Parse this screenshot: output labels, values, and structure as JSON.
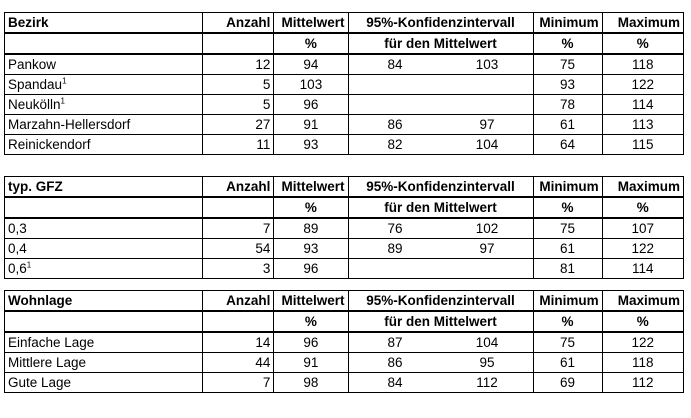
{
  "headers": {
    "count": "Anzahl",
    "mean_1": "Mittelwert",
    "mean_2": "%",
    "ci_1": "95%-Konfidenzintervall",
    "ci_2": "für den Mittelwert",
    "min_1": "Minimum",
    "min_2": "%",
    "max_1": "Maximum",
    "max_2": "%"
  },
  "tables": [
    {
      "title": "Bezirk",
      "rows": [
        {
          "label": "Pankow",
          "sup": "",
          "count": "12",
          "mean": "94",
          "ci_low": "84",
          "ci_high": "103",
          "min": "75",
          "max": "118"
        },
        {
          "label": "Spandau",
          "sup": "1",
          "count": "5",
          "mean": "103",
          "ci_low": "",
          "ci_high": "",
          "min": "93",
          "max": "122"
        },
        {
          "label": "Neukölln",
          "sup": "1",
          "count": "5",
          "mean": "96",
          "ci_low": "",
          "ci_high": "",
          "min": "78",
          "max": "114"
        },
        {
          "label": "Marzahn-Hellersdorf",
          "sup": "",
          "count": "27",
          "mean": "91",
          "ci_low": "86",
          "ci_high": "97",
          "min": "61",
          "max": "113"
        },
        {
          "label": "Reinickendorf",
          "sup": "",
          "count": "11",
          "mean": "93",
          "ci_low": "82",
          "ci_high": "104",
          "min": "64",
          "max": "115"
        }
      ]
    },
    {
      "title": "typ. GFZ",
      "rows": [
        {
          "label": "0,3",
          "sup": "",
          "count": "7",
          "mean": "89",
          "ci_low": "76",
          "ci_high": "102",
          "min": "75",
          "max": "107"
        },
        {
          "label": "0,4",
          "sup": "",
          "count": "54",
          "mean": "93",
          "ci_low": "89",
          "ci_high": "97",
          "min": "61",
          "max": "122"
        },
        {
          "label": "0,6",
          "sup": "1",
          "count": "3",
          "mean": "96",
          "ci_low": "",
          "ci_high": "",
          "min": "81",
          "max": "114"
        }
      ]
    },
    {
      "title": "Wohnlage",
      "rows": [
        {
          "label": "Einfache Lage",
          "sup": "",
          "count": "14",
          "mean": "96",
          "ci_low": "87",
          "ci_high": "104",
          "min": "75",
          "max": "122"
        },
        {
          "label": "Mittlere Lage",
          "sup": "",
          "count": "44",
          "mean": "91",
          "ci_low": "86",
          "ci_high": "95",
          "min": "61",
          "max": "118"
        },
        {
          "label": "Gute Lage",
          "sup": "",
          "count": "7",
          "mean": "98",
          "ci_low": "84",
          "ci_high": "112",
          "min": "69",
          "max": "112"
        }
      ]
    }
  ]
}
